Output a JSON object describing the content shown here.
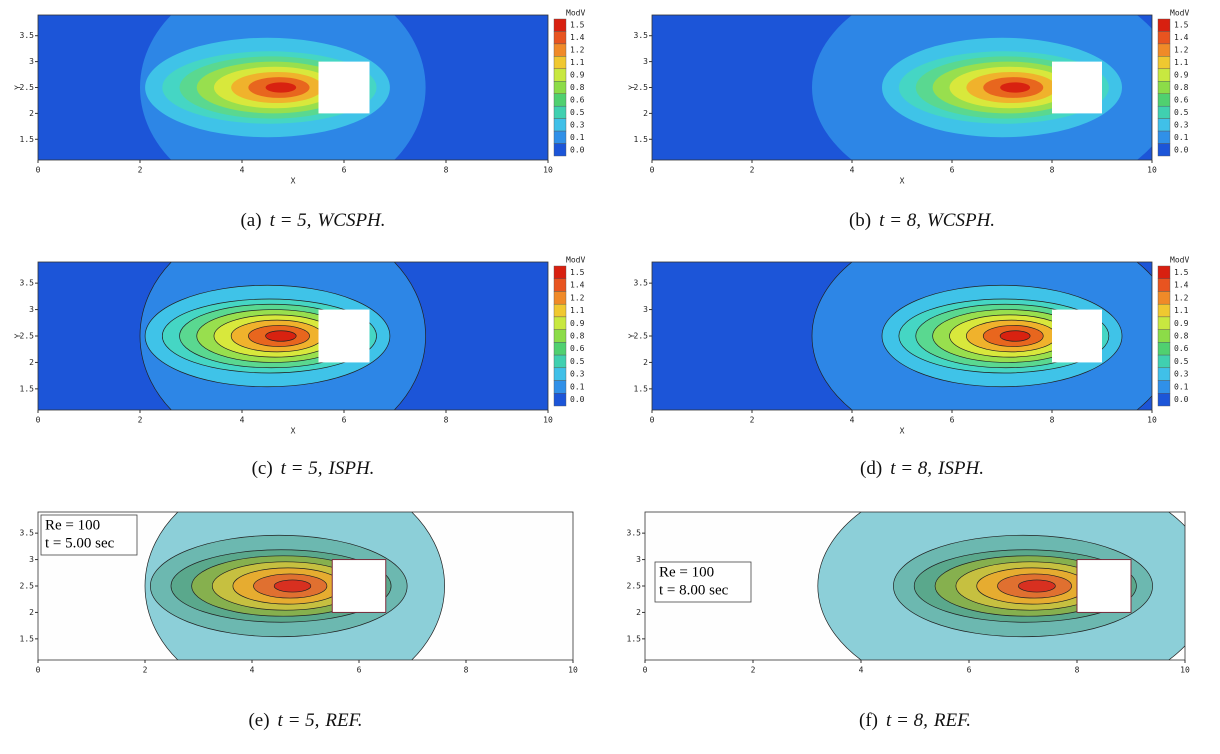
{
  "panels": [
    {
      "caption": {
        "label": "(a)",
        "time": "t = 5,",
        "method": "WCSPH."
      },
      "xlabel": "X",
      "ylabel": "Y",
      "xticks": [
        "0",
        "2",
        "4",
        "6",
        "8",
        "10"
      ],
      "yticks": [
        "3.5",
        "3",
        "2.5",
        "2",
        "1.5"
      ],
      "colorbar": {
        "title": "ModV",
        "labels": [
          "1.5",
          "1.4",
          "1.2",
          "1.1",
          "0.9",
          "0.8",
          "0.6",
          "0.5",
          "0.3",
          "0.1",
          "0.0"
        ]
      }
    },
    {
      "caption": {
        "label": "(b)",
        "time": "t = 8,",
        "method": "WCSPH."
      },
      "xlabel": "X",
      "ylabel": "Y",
      "xticks": [
        "0",
        "2",
        "4",
        "6",
        "8",
        "10"
      ],
      "yticks": [
        "3.5",
        "3",
        "2.5",
        "2",
        "1.5"
      ],
      "colorbar": {
        "title": "ModV",
        "labels": [
          "1.5",
          "1.4",
          "1.2",
          "1.1",
          "0.9",
          "0.8",
          "0.6",
          "0.5",
          "0.3",
          "0.1",
          "0.0"
        ]
      }
    },
    {
      "caption": {
        "label": "(c)",
        "time": "t = 5,",
        "method": "ISPH."
      },
      "xlabel": "X",
      "ylabel": "Y",
      "xticks": [
        "0",
        "2",
        "4",
        "6",
        "8",
        "10"
      ],
      "yticks": [
        "3.5",
        "3",
        "2.5",
        "2",
        "1.5"
      ],
      "colorbar": {
        "title": "ModV",
        "labels": [
          "1.5",
          "1.4",
          "1.2",
          "1.1",
          "0.9",
          "0.8",
          "0.6",
          "0.5",
          "0.3",
          "0.1",
          "0.0"
        ]
      }
    },
    {
      "caption": {
        "label": "(d)",
        "time": "t = 8,",
        "method": "ISPH."
      },
      "xlabel": "X",
      "ylabel": "Y",
      "xticks": [
        "0",
        "2",
        "4",
        "6",
        "8",
        "10"
      ],
      "yticks": [
        "3.5",
        "3",
        "2.5",
        "2",
        "1.5"
      ],
      "colorbar": {
        "title": "ModV",
        "labels": [
          "1.5",
          "1.4",
          "1.2",
          "1.1",
          "0.9",
          "0.8",
          "0.6",
          "0.5",
          "0.3",
          "0.1",
          "0.0"
        ]
      }
    },
    {
      "caption": {
        "label": "(e)",
        "time": "t = 5,",
        "method": "REF."
      },
      "xticks": [
        "0",
        "2",
        "4",
        "6",
        "8",
        "10"
      ],
      "yticks": [
        "3.5",
        "3",
        "2.5",
        "2",
        "1.5"
      ],
      "legend": [
        "Re = 100",
        "t = 5.00 sec"
      ]
    },
    {
      "caption": {
        "label": "(f)",
        "time": "t = 8,",
        "method": "REF."
      },
      "xticks": [
        "0",
        "2",
        "4",
        "6",
        "8",
        "10"
      ],
      "yticks": [
        "3.5",
        "3",
        "2.5",
        "2",
        "1.5"
      ],
      "legend": [
        "Re = 100",
        "t = 8.00 sec"
      ]
    }
  ]
}
